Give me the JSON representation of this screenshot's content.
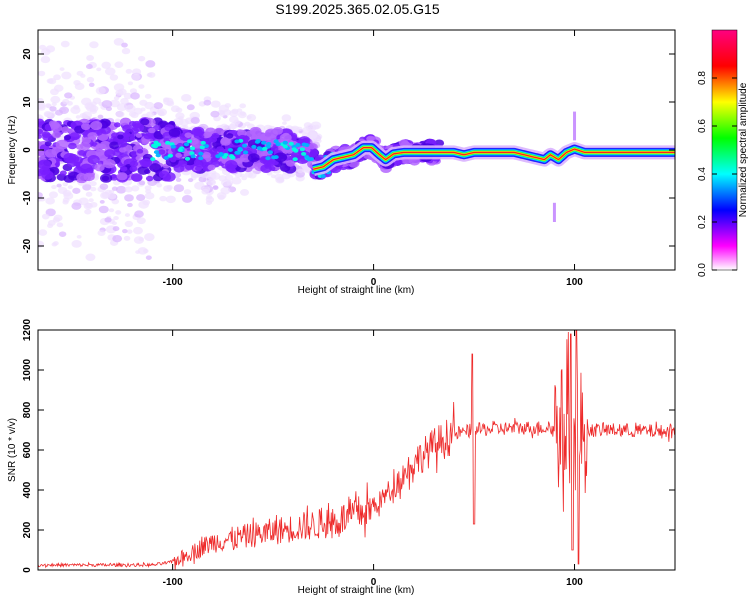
{
  "title": "S199.2025.365.02.05.G15",
  "chart_data": [
    {
      "type": "heatmap",
      "xlabel": "Height of straight line (km)",
      "ylabel": "Frequency (Hz)",
      "xlim": [
        -167,
        150
      ],
      "ylim": [
        -25,
        25
      ],
      "xticks": [
        -100,
        0,
        100
      ],
      "yticks": [
        -20,
        -10,
        0,
        10,
        20
      ],
      "colorbar": {
        "label": "Normalized spectral amplitude",
        "range": [
          0,
          1
        ],
        "ticks": [
          0.0,
          0.2,
          0.4,
          0.6,
          0.8
        ],
        "colors": [
          "#ffffff",
          "#ff00ff",
          "#0000ff",
          "#00ffff",
          "#00ff00",
          "#ffff00",
          "#ff0000",
          "#ff0080"
        ]
      },
      "ridge": {
        "x": [
          -30,
          -25,
          -20,
          -15,
          -10,
          -5,
          -1,
          3,
          6,
          10,
          15,
          40,
          45,
          50,
          70,
          75,
          80,
          85,
          88,
          92,
          96,
          100,
          105,
          150
        ],
        "y": [
          -4,
          -3.5,
          -2,
          -1.5,
          -1,
          0.5,
          0.5,
          -1,
          -2,
          -0.8,
          -0.5,
          -0.5,
          -1,
          -0.5,
          -0.5,
          -1,
          -1.5,
          -2,
          -1,
          -2,
          -0.5,
          0.2,
          -0.5,
          -0.5
        ]
      },
      "streaks": [
        {
          "x": 100,
          "y": [
            2,
            8
          ]
        },
        {
          "x": 90,
          "y": [
            -15,
            -11
          ]
        }
      ]
    },
    {
      "type": "line",
      "xlabel": "Height of straight line (km)",
      "ylabel": "SNR (10 * v/v)",
      "xlim": [
        -167,
        150
      ],
      "ylim": [
        0,
        1200
      ],
      "xticks": [
        -100,
        0,
        100
      ],
      "yticks": [
        0,
        200,
        400,
        600,
        800,
        1000,
        1200
      ],
      "color": "#ee2a2a",
      "trend": {
        "x": [
          -167,
          -110,
          -100,
          -90,
          -80,
          -60,
          -40,
          -20,
          0,
          10,
          20,
          30,
          40,
          50,
          60,
          70,
          80,
          90,
          95,
          100,
          110,
          120,
          150
        ],
        "y": [
          25,
          25,
          40,
          90,
          140,
          175,
          210,
          240,
          310,
          420,
          540,
          620,
          680,
          700,
          705,
          710,
          712,
          710,
          705,
          700,
          700,
          700,
          690
        ]
      },
      "spikes": [
        {
          "x": 49,
          "y": 1080
        },
        {
          "x": 50,
          "y": 230
        },
        {
          "x": 98,
          "y": 1180
        },
        {
          "x": 99,
          "y": 100
        },
        {
          "x": 101,
          "y": 1200
        },
        {
          "x": 102,
          "y": 30
        }
      ]
    }
  ]
}
